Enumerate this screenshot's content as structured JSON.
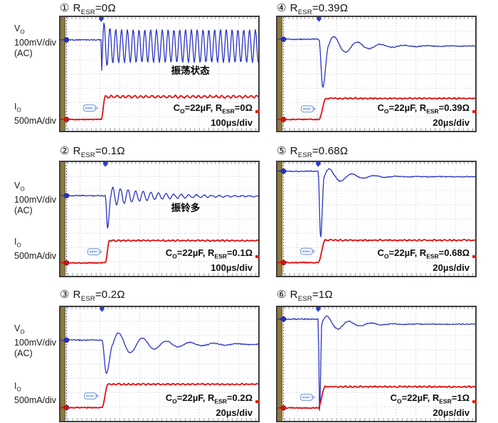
{
  "style": {
    "blue": "#2b34c3",
    "red": "#e01212",
    "grid": "#c6c9d2",
    "tick": "#9aa0ad",
    "olive": "#8e793c",
    "olive_edge": "#6e5d2c",
    "dotline": "#3d5bd0",
    "border": "#3f3f3f",
    "trigger": "#2a3bd6",
    "badge_border": "#7b9bd8",
    "badge_fill": "#eef4fe",
    "badge_ink": "#4a6fd0",
    "text": "#111111"
  },
  "ch_labels": {
    "vo": {
      "sym": "V",
      "sub": "O",
      "scale": "100mV/div",
      "coupling": "(AC)"
    },
    "io": {
      "sym": "I",
      "sub": "O",
      "scale": "500mA/div"
    }
  },
  "panels": [
    {
      "num": "①",
      "title": {
        "prefix": "R",
        "sub": "ESR",
        "value": "=0Ω"
      },
      "cap": {
        "p1": "C",
        "s1": "O",
        "p2": "=22µF, R",
        "s2": "ESR",
        "p3": "=0Ω"
      },
      "timebase": "100µs/div",
      "note": "振荡状态"
    },
    {
      "num": "②",
      "title": {
        "prefix": "R",
        "sub": "ESR",
        "value": "=0.1Ω"
      },
      "cap": {
        "p1": "C",
        "s1": "O",
        "p2": "=22µF, R",
        "s2": "ESR",
        "p3": "=0.1Ω"
      },
      "timebase": "100µs/div",
      "note": "振铃多"
    },
    {
      "num": "③",
      "title": {
        "prefix": "R",
        "sub": "ESR",
        "value": "=0.2Ω"
      },
      "cap": {
        "p1": "C",
        "s1": "O",
        "p2": "=22µF, R",
        "s2": "ESR",
        "p3": "=0.2Ω"
      },
      "timebase": "20µs/div",
      "note": ""
    },
    {
      "num": "④",
      "title": {
        "prefix": "R",
        "sub": "ESR",
        "value": "=0.39Ω"
      },
      "cap": {
        "p1": "C",
        "s1": "O",
        "p2": "=22µF, R",
        "s2": "ESR",
        "p3": "=0.39Ω"
      },
      "timebase": "20µs/div",
      "note": ""
    },
    {
      "num": "⑤",
      "title": {
        "prefix": "R",
        "sub": "ESR",
        "value": "=0.68Ω"
      },
      "cap": {
        "p1": "C",
        "s1": "O",
        "p2": "=22µF, R",
        "s2": "ESR",
        "p3": "=0.68Ω"
      },
      "timebase": "20µs/div",
      "note": ""
    },
    {
      "num": "⑥",
      "title": {
        "prefix": "R",
        "sub": "ESR",
        "value": "=1Ω"
      },
      "cap": {
        "p1": "C",
        "s1": "O",
        "p2": "=22µF, R",
        "s2": "ESR",
        "p3": "=1Ω"
      },
      "timebase": "20µs/div",
      "note": ""
    }
  ],
  "chart_data": [
    {
      "type": "line",
      "panel": "①",
      "condition": "Co=22µF, Resr=0Ω",
      "time_per_div": "100µs/div",
      "divisions": {
        "x": 10,
        "y": 8
      },
      "series": [
        {
          "name": "Vo",
          "scale": "100mV/div",
          "coupling": "AC",
          "color": "blue"
        },
        {
          "name": "Io",
          "scale": "500mA/div",
          "color": "red"
        }
      ],
      "label": "振荡状态",
      "waveform": {
        "mode": "sustained",
        "blue": {
          "base": 0.2,
          "step": 0.206,
          "center": 0.255,
          "amp": 0.145,
          "freq": 34,
          "dip": 0.52
        },
        "red": {
          "base": 0.9,
          "level": 0.7,
          "rise": 0.02,
          "ripple": 0.01,
          "rippleFreq": 34
        }
      }
    },
    {
      "type": "line",
      "panel": "②",
      "condition": "Co=22µF, Resr=0.1Ω",
      "time_per_div": "100µs/div",
      "divisions": {
        "x": 10,
        "y": 8
      },
      "series": [
        {
          "name": "Vo",
          "scale": "100mV/div",
          "coupling": "AC",
          "color": "blue"
        },
        {
          "name": "Io",
          "scale": "500mA/div",
          "color": "red"
        }
      ],
      "label": "振铃多",
      "waveform": {
        "mode": "ring",
        "blue": {
          "base": 0.295,
          "step": 0.227,
          "dip": 0.584,
          "dipW": 0.028,
          "A": 0.085,
          "freq": 26,
          "decay": 4.5,
          "settle": 0.3
        },
        "red": {
          "base": 0.886,
          "level": 0.69,
          "rise": 0.02,
          "ripple": 0.004,
          "rippleFreq": 40
        }
      }
    },
    {
      "type": "line",
      "panel": "③",
      "condition": "Co=22µF, Resr=0.2Ω",
      "time_per_div": "20µs/div",
      "divisions": {
        "x": 10,
        "y": 8
      },
      "series": [
        {
          "name": "Vo",
          "scale": "100mV/div",
          "coupling": "AC",
          "color": "blue"
        },
        {
          "name": "Io",
          "scale": "500mA/div",
          "color": "red"
        }
      ],
      "label": "",
      "waveform": {
        "mode": "ring",
        "blue": {
          "base": 0.29,
          "step": 0.21,
          "dip": 0.585,
          "dipW": 0.055,
          "A": 0.115,
          "freq": 8.3,
          "decay": 5,
          "settle": 0.327
        },
        "red": {
          "base": 0.883,
          "level": 0.678,
          "rise": 0.03,
          "ripple": 0.004,
          "rippleFreq": 40
        }
      }
    },
    {
      "type": "line",
      "panel": "④",
      "condition": "Co=22µF, Resr=0.39Ω",
      "time_per_div": "20µs/div",
      "divisions": {
        "x": 10,
        "y": 8
      },
      "series": [
        {
          "name": "Vo",
          "scale": "100mV/div",
          "coupling": "AC",
          "color": "blue"
        },
        {
          "name": "Io",
          "scale": "500mA/div",
          "color": "red"
        }
      ],
      "label": "",
      "waveform": {
        "mode": "ring",
        "blue": {
          "base": 0.195,
          "step": 0.21,
          "dip": 0.62,
          "dipW": 0.048,
          "A": 0.1,
          "freq": 8.5,
          "decay": 7,
          "settle": 0.255
        },
        "red": {
          "base": 0.9,
          "level": 0.715,
          "rise": 0.035,
          "ripple": 0.004,
          "rippleFreq": 40
        }
      }
    },
    {
      "type": "line",
      "panel": "⑤",
      "condition": "Co=22µF, Resr=0.68Ω",
      "time_per_div": "20µs/div",
      "divisions": {
        "x": 10,
        "y": 8
      },
      "series": [
        {
          "name": "Vo",
          "scale": "100mV/div",
          "coupling": "AC",
          "color": "blue"
        },
        {
          "name": "Io",
          "scale": "500mA/div",
          "color": "red"
        }
      ],
      "label": "",
      "waveform": {
        "mode": "ring",
        "blue": {
          "base": 0.08,
          "step": 0.206,
          "dip": 0.667,
          "dipW": 0.03,
          "A": 0.085,
          "freq": 8.8,
          "decay": 9,
          "settle": 0.128
        },
        "red": {
          "base": 0.883,
          "level": 0.687,
          "rise": 0.035,
          "ripple": 0.004,
          "rippleFreq": 40
        }
      }
    },
    {
      "type": "line",
      "panel": "⑥",
      "condition": "Co=22µF, Resr=1Ω",
      "time_per_div": "20µs/div",
      "divisions": {
        "x": 10,
        "y": 8
      },
      "series": [
        {
          "name": "Vo",
          "scale": "100mV/div",
          "coupling": "AC",
          "color": "blue"
        },
        {
          "name": "Io",
          "scale": "500mA/div",
          "color": "red"
        }
      ],
      "label": "",
      "waveform": {
        "mode": "ring",
        "blue": {
          "base": 0.105,
          "step": 0.206,
          "dip": 0.95,
          "dipW": 0.018,
          "A": 0.09,
          "freq": 9,
          "decay": 9,
          "settle": 0.15
        },
        "red": {
          "base": 0.886,
          "level": 0.7,
          "rise": 0.035,
          "ripple": 0.004,
          "rippleFreq": 40
        }
      }
    }
  ]
}
